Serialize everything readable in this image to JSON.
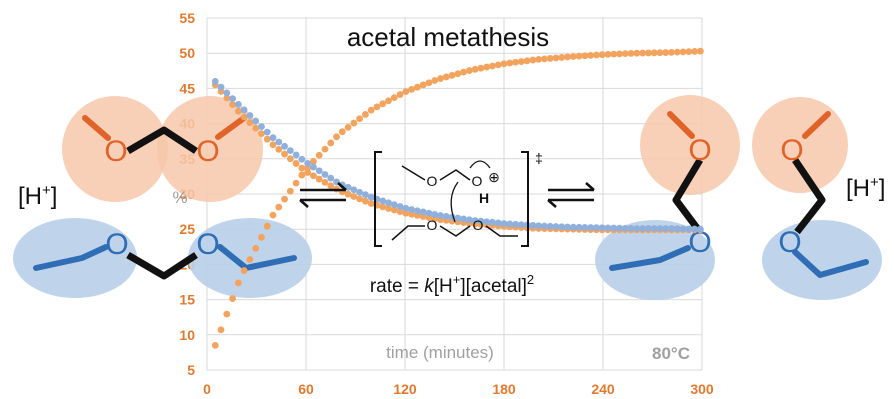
{
  "chart_data": {
    "type": "scatter",
    "title": "acetal metathesis",
    "xlabel": "time (minutes)",
    "ylabel": "%",
    "x_ticks": [
      "0",
      "60",
      "120",
      "180",
      "240",
      "300"
    ],
    "y_ticks": [
      "5",
      "10",
      "15",
      "20",
      "25",
      "30",
      "35",
      "40",
      "45",
      "50",
      "55"
    ],
    "xlim": [
      0,
      300
    ],
    "ylim": [
      5,
      55
    ],
    "grid": true,
    "series": [
      {
        "color": "#f2a35d",
        "x": [
          5,
          20,
          40,
          60,
          80,
          100,
          120,
          140,
          160,
          180,
          200,
          220,
          240,
          260,
          280,
          300
        ],
        "y": [
          8.5,
          18,
          27,
          33.5,
          38.5,
          42,
          44.5,
          46.3,
          47.6,
          48.5,
          49.1,
          49.5,
          49.8,
          50.0,
          50.1,
          50.3
        ]
      },
      {
        "color": "#f2a35d",
        "x": [
          5,
          20,
          40,
          60,
          80,
          100,
          120,
          140,
          160,
          180,
          200,
          220,
          240,
          260,
          280,
          300
        ],
        "y": [
          45.5,
          41.5,
          37,
          33.2,
          30.5,
          28.6,
          27.3,
          26.4,
          25.8,
          25.4,
          25.1,
          25.0,
          24.9,
          24.9,
          24.9,
          24.9
        ]
      },
      {
        "color": "#8fb0dc",
        "x": [
          5,
          20,
          40,
          60,
          80,
          100,
          120,
          140,
          160,
          180,
          200,
          220,
          240,
          260,
          280,
          300
        ],
        "y": [
          46,
          42.5,
          38,
          34.5,
          31.5,
          29.5,
          28.0,
          27.0,
          26.3,
          25.8,
          25.5,
          25.3,
          25.2,
          25.1,
          25.1,
          25.0
        ]
      }
    ],
    "annotations": [
      "80°C",
      "rate = k[H+][acetal]2",
      "[H+]",
      "[H+]",
      "‡"
    ]
  },
  "labels": {
    "title": "acetal metathesis",
    "xlabel": "time (minutes)",
    "ylabel": "%",
    "temperature": "80°C",
    "rate_prefix": "rate = ",
    "rate_k": "k",
    "rate_mid": "[H",
    "rate_plus": "+",
    "rate_suffix": "][acetal]",
    "rate_sq": "2",
    "hplus_left": "[H",
    "hplus_right": "[H",
    "hplus_sup": "+",
    "hplus_close": "]",
    "double_dagger": "‡",
    "atom_O": "O",
    "atom_H": "H",
    "oplus": "⊕"
  },
  "colors": {
    "orange_dot": "#f2a35d",
    "blue_dot": "#8fb0dc",
    "orange_circle": "#f7c8aa",
    "blue_ellipse": "#b8cfe8",
    "orange_O": "#e0642a",
    "blue_O": "#2f6db5",
    "tick_orange": "#e07a2e",
    "grid": "#d9d9d9"
  }
}
